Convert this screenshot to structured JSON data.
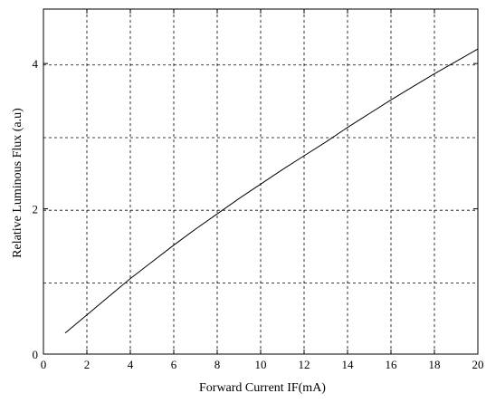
{
  "chart_data": {
    "type": "line",
    "title": "",
    "xlabel": "Forward Current IF(mA)",
    "ylabel": "Relative Luminous Flux (a.u)",
    "xlim": [
      0,
      20
    ],
    "ylim": [
      0,
      4.75
    ],
    "x_ticks": [
      0,
      2,
      4,
      6,
      8,
      10,
      12,
      14,
      16,
      18,
      20
    ],
    "y_ticks": [
      0,
      2,
      4
    ],
    "x_tick_labels": [
      "0",
      "2",
      "4",
      "6",
      "8",
      "10",
      "12",
      "14",
      "16",
      "18",
      "20"
    ],
    "y_tick_labels": [
      "0",
      "2",
      "4"
    ],
    "x_grid": [
      2,
      4,
      6,
      8,
      10,
      12,
      14,
      16,
      18
    ],
    "y_grid": [
      0.98,
      1.98,
      2.98,
      3.98
    ],
    "grid": "dashed",
    "series": [
      {
        "x": [
          1,
          2,
          3,
          4,
          5,
          6,
          7,
          8,
          9,
          10,
          11,
          12,
          13,
          14,
          15,
          16,
          17,
          18,
          19,
          20
        ],
        "y": [
          0.29,
          0.54,
          0.79,
          1.04,
          1.27,
          1.5,
          1.72,
          1.93,
          2.14,
          2.34,
          2.54,
          2.73,
          2.92,
          3.12,
          3.31,
          3.5,
          3.68,
          3.86,
          4.03,
          4.2
        ]
      }
    ]
  }
}
